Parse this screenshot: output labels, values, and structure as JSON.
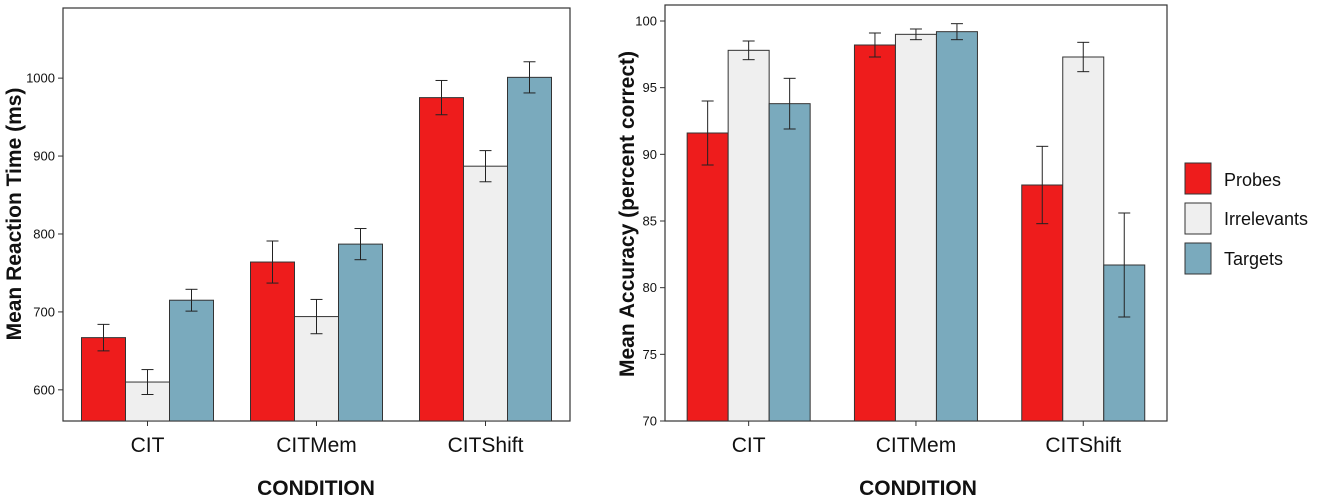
{
  "series_colors": {
    "Probes": "#ee1c1c",
    "Irrelevants": "#efefef",
    "Targets": "#7aaabd"
  },
  "legend": {
    "entries": [
      "Probes",
      "Irrelevants",
      "Targets"
    ]
  },
  "chart_data": [
    {
      "type": "bar",
      "title": "",
      "xlabel": "CONDITION",
      "ylabel": "Mean Reaction Time (ms)",
      "categories": [
        "CIT",
        "CITMem",
        "CITShift"
      ],
      "ylim": [
        560,
        1090
      ],
      "yticks": [
        600,
        700,
        800,
        900,
        1000
      ],
      "series": [
        {
          "name": "Probes",
          "values": [
            667,
            764,
            975
          ],
          "errors": [
            17,
            27,
            22
          ]
        },
        {
          "name": "Irrelevants",
          "values": [
            610,
            694,
            887
          ],
          "errors": [
            16,
            22,
            20
          ]
        },
        {
          "name": "Targets",
          "values": [
            715,
            787,
            1001
          ],
          "errors": [
            14,
            20,
            20
          ]
        }
      ]
    },
    {
      "type": "bar",
      "title": "",
      "xlabel": "CONDITION",
      "ylabel": "Mean Accuracy (percent correct)",
      "categories": [
        "CIT",
        "CITMem",
        "CITShift"
      ],
      "ylim": [
        70,
        101.2
      ],
      "yticks": [
        70,
        75,
        80,
        85,
        90,
        95,
        100
      ],
      "series": [
        {
          "name": "Probes",
          "values": [
            91.6,
            98.2,
            87.7
          ],
          "errors": [
            2.4,
            0.9,
            2.9
          ]
        },
        {
          "name": "Irrelevants",
          "values": [
            97.8,
            99.0,
            97.3
          ],
          "errors": [
            0.7,
            0.4,
            1.1
          ]
        },
        {
          "name": "Targets",
          "values": [
            93.8,
            99.2,
            81.7
          ],
          "errors": [
            1.9,
            0.6,
            3.9
          ]
        }
      ]
    }
  ]
}
